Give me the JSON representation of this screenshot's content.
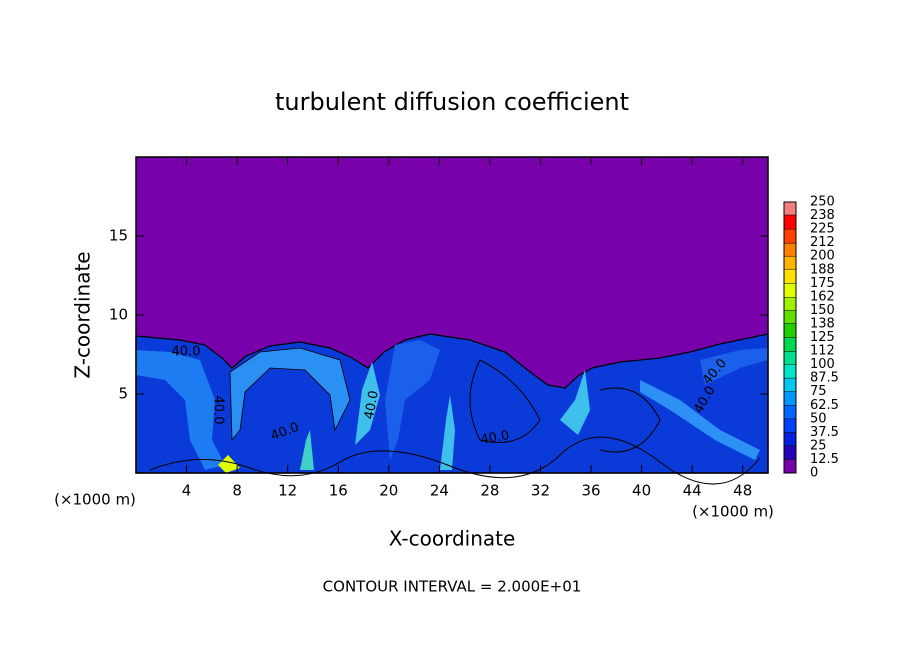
{
  "chart_data": {
    "type": "contour",
    "title": "turbulent diffusion coefficient",
    "xlabel": "X-coordinate",
    "ylabel": "Z-coordinate",
    "x_unit": "(×1000 m)",
    "note": "CONTOUR INTERVAL = 2.000E+01",
    "xlim": [
      0,
      50
    ],
    "xticks": [
      4,
      8,
      12,
      16,
      20,
      24,
      28,
      32,
      36,
      40,
      44,
      48
    ],
    "ylim": [
      0,
      20
    ],
    "yticks": [
      5,
      10,
      15
    ],
    "contour_labels": [
      "40.0",
      "40.0",
      "40.0",
      "40.0",
      "40.0",
      "40.0",
      "40.0"
    ],
    "colorbar": {
      "levels": [
        0,
        12.5,
        25,
        37.5,
        50,
        62.5,
        75,
        87.5,
        100,
        112,
        125,
        138,
        150,
        162,
        175,
        188,
        200,
        212,
        225,
        238,
        250
      ],
      "colors": [
        "#7700aa",
        "#2400b8",
        "#0020dc",
        "#0040f8",
        "#0066ff",
        "#0096ff",
        "#00c8f0",
        "#00e4c8",
        "#00e090",
        "#00d850",
        "#20d000",
        "#60e000",
        "#a0f000",
        "#e0ff00",
        "#ffe000",
        "#ffb400",
        "#ff8000",
        "#ff4000",
        "#ff0000",
        "#f08080"
      ]
    }
  }
}
